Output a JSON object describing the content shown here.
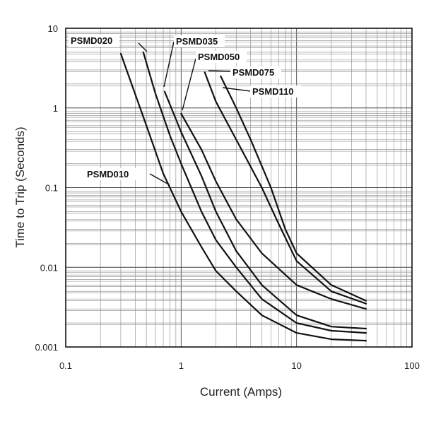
{
  "chart_data": {
    "type": "line",
    "xscale": "log",
    "yscale": "log",
    "xlim": [
      0.1,
      100
    ],
    "ylim": [
      0.001,
      10
    ],
    "xlabel": "Current (Amps)",
    "ylabel": "Time to Trip (Seconds)",
    "x_tick_labels": [
      {
        "value": 0.1,
        "label": "0.1"
      },
      {
        "value": 1,
        "label": "1"
      },
      {
        "value": 10,
        "label": "10"
      },
      {
        "value": 100,
        "label": "100"
      }
    ],
    "y_tick_labels": [
      {
        "value": 0.001,
        "label": "0.001"
      },
      {
        "value": 0.01,
        "label": "0.01"
      },
      {
        "value": 0.1,
        "label": "0.1"
      },
      {
        "value": 1,
        "label": "1"
      },
      {
        "value": 10,
        "label": "10"
      }
    ],
    "grid": true,
    "series": [
      {
        "name": "PSMD010",
        "points": [
          [
            0.3,
            4.8
          ],
          [
            0.5,
            0.6
          ],
          [
            0.7,
            0.15
          ],
          [
            1.0,
            0.05
          ],
          [
            1.5,
            0.018
          ],
          [
            2.0,
            0.009
          ],
          [
            3.0,
            0.005
          ],
          [
            5.0,
            0.0025
          ],
          [
            10.0,
            0.0015
          ],
          [
            20.0,
            0.00125
          ],
          [
            40.0,
            0.0012
          ]
        ]
      },
      {
        "name": "PSMD020",
        "points": [
          [
            0.47,
            5.0
          ],
          [
            0.6,
            1.5
          ],
          [
            0.8,
            0.45
          ],
          [
            1.0,
            0.2
          ],
          [
            1.5,
            0.05
          ],
          [
            2.0,
            0.022
          ],
          [
            3.0,
            0.01
          ],
          [
            5.0,
            0.004
          ],
          [
            10.0,
            0.002
          ],
          [
            20.0,
            0.0016
          ],
          [
            40.0,
            0.0015
          ]
        ]
      },
      {
        "name": "PSMD035",
        "points": [
          [
            0.72,
            1.6
          ],
          [
            1.0,
            0.5
          ],
          [
            1.5,
            0.14
          ],
          [
            2.0,
            0.05
          ],
          [
            3.0,
            0.016
          ],
          [
            5.0,
            0.006
          ],
          [
            10.0,
            0.0025
          ],
          [
            20.0,
            0.0018
          ],
          [
            40.0,
            0.0017
          ]
        ]
      },
      {
        "name": "PSMD050",
        "points": [
          [
            1.0,
            0.85
          ],
          [
            1.5,
            0.3
          ],
          [
            2.0,
            0.12
          ],
          [
            3.0,
            0.04
          ],
          [
            5.0,
            0.015
          ],
          [
            10.0,
            0.006
          ],
          [
            20.0,
            0.004
          ],
          [
            40.0,
            0.003
          ]
        ]
      },
      {
        "name": "PSMD075",
        "points": [
          [
            1.6,
            2.8
          ],
          [
            2.0,
            1.2
          ],
          [
            3.0,
            0.4
          ],
          [
            5.0,
            0.1
          ],
          [
            7.0,
            0.035
          ],
          [
            10.0,
            0.012
          ],
          [
            20.0,
            0.005
          ],
          [
            40.0,
            0.0035
          ]
        ]
      },
      {
        "name": "PSMD110",
        "points": [
          [
            2.2,
            2.5
          ],
          [
            3.0,
            1.0
          ],
          [
            4.0,
            0.4
          ],
          [
            6.0,
            0.1
          ],
          [
            8.0,
            0.03
          ],
          [
            10.0,
            0.015
          ],
          [
            20.0,
            0.006
          ],
          [
            40.0,
            0.0038
          ]
        ]
      }
    ],
    "annotations": [
      {
        "text": "PSMD010",
        "series": 0
      },
      {
        "text": "PSMD020",
        "series": 1
      },
      {
        "text": "PSMD035",
        "series": 2
      },
      {
        "text": "PSMD050",
        "series": 3
      },
      {
        "text": "PSMD075",
        "series": 4
      },
      {
        "text": "PSMD110",
        "series": 5
      }
    ]
  }
}
